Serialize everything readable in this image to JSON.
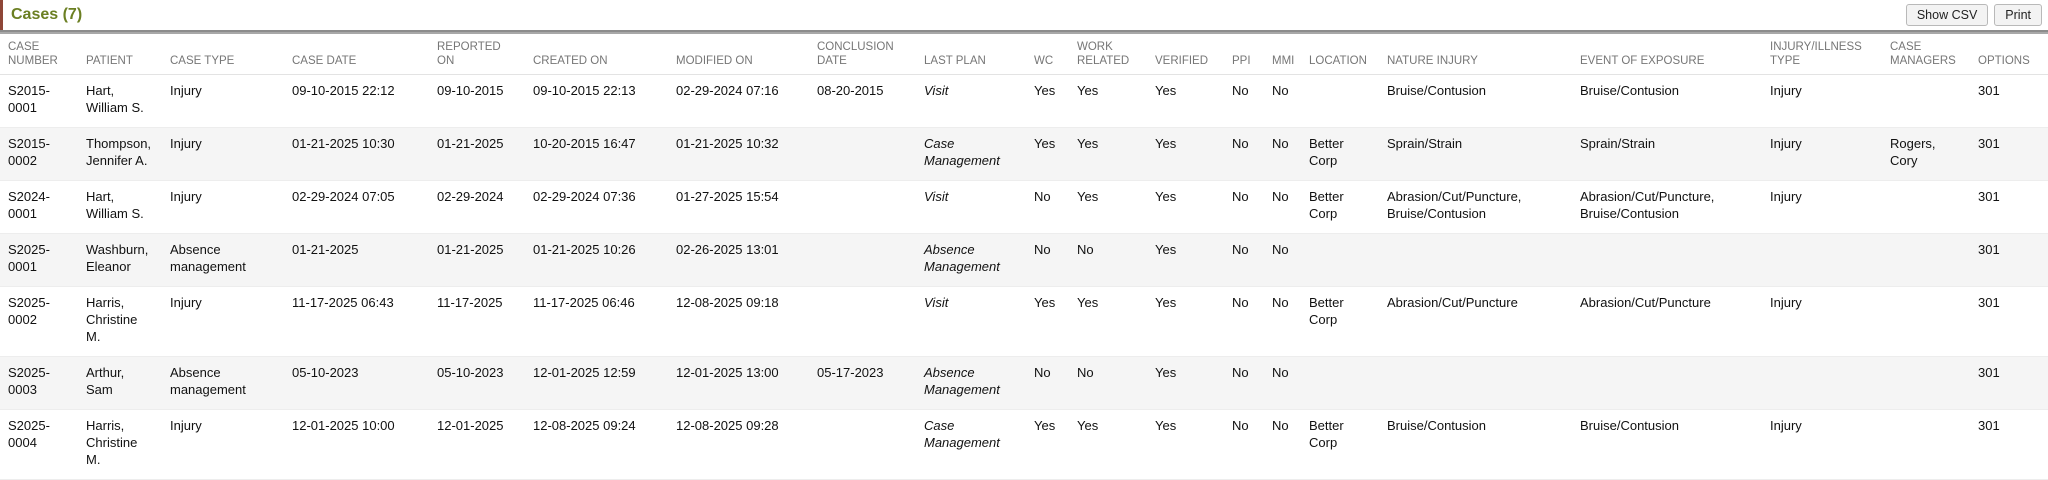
{
  "header": {
    "title": "Cases (7)",
    "show_csv_label": "Show CSV",
    "print_label": "Print"
  },
  "colors": {
    "title_green": "#6b7f22",
    "accent_left_border": "#8e4637",
    "header_text_gray": "#767676",
    "row_stripe": "#f5f5f5",
    "button_background": "#f3f3f3"
  },
  "table": {
    "columns": [
      {
        "key": "case_number",
        "label": "CASE NUMBER"
      },
      {
        "key": "patient",
        "label": "PATIENT"
      },
      {
        "key": "case_type",
        "label": "CASE TYPE"
      },
      {
        "key": "case_date",
        "label": "CASE DATE"
      },
      {
        "key": "reported_on",
        "label": "REPORTED ON"
      },
      {
        "key": "created_on",
        "label": "CREATED ON"
      },
      {
        "key": "modified_on",
        "label": "MODIFIED ON"
      },
      {
        "key": "conclusion_date",
        "label": "CONCLUSION DATE"
      },
      {
        "key": "last_plan",
        "label": "LAST PLAN"
      },
      {
        "key": "wc",
        "label": "WC"
      },
      {
        "key": "work_related",
        "label": "WORK RELATED"
      },
      {
        "key": "verified",
        "label": "VERIFIED"
      },
      {
        "key": "ppi",
        "label": "PPI"
      },
      {
        "key": "mmi",
        "label": "MMI"
      },
      {
        "key": "location",
        "label": "LOCATION"
      },
      {
        "key": "nature_injury",
        "label": "NATURE INJURY"
      },
      {
        "key": "event_of_exposure",
        "label": "EVENT OF EXPOSURE"
      },
      {
        "key": "injury_illness_type",
        "label": "INJURY/ILLNESS TYPE"
      },
      {
        "key": "case_managers",
        "label": "CASE MANAGERS"
      },
      {
        "key": "options",
        "label": "OPTIONS"
      }
    ],
    "rows": [
      {
        "case_number": "S2015-0001",
        "patient": "Hart, William S.",
        "case_type": "Injury",
        "case_date": "09-10-2015 22:12",
        "reported_on": "09-10-2015",
        "created_on": "09-10-2015 22:13",
        "modified_on": "02-29-2024 07:16",
        "conclusion_date": "08-20-2015",
        "last_plan": "Visit",
        "wc": "Yes",
        "work_related": "Yes",
        "verified": "Yes",
        "ppi": "No",
        "mmi": "No",
        "location": "",
        "nature_injury": "Bruise/Contusion",
        "event_of_exposure": "Bruise/Contusion",
        "injury_illness_type": "Injury",
        "case_managers": "",
        "options": "301"
      },
      {
        "case_number": "S2015-0002",
        "patient": "Thompson, Jennifer A.",
        "case_type": "Injury",
        "case_date": "01-21-2025 10:30",
        "reported_on": "01-21-2025",
        "created_on": "10-20-2015 16:47",
        "modified_on": "01-21-2025 10:32",
        "conclusion_date": "",
        "last_plan": "Case Management",
        "wc": "Yes",
        "work_related": "Yes",
        "verified": "Yes",
        "ppi": "No",
        "mmi": "No",
        "location": "Better Corp",
        "nature_injury": "Sprain/Strain",
        "event_of_exposure": "Sprain/Strain",
        "injury_illness_type": "Injury",
        "case_managers": "Rogers, Cory",
        "options": "301"
      },
      {
        "case_number": "S2024-0001",
        "patient": "Hart, William S.",
        "case_type": "Injury",
        "case_date": "02-29-2024 07:05",
        "reported_on": "02-29-2024",
        "created_on": "02-29-2024 07:36",
        "modified_on": "01-27-2025 15:54",
        "conclusion_date": "",
        "last_plan": "Visit",
        "wc": "No",
        "work_related": "Yes",
        "verified": "Yes",
        "ppi": "No",
        "mmi": "No",
        "location": "Better Corp",
        "nature_injury": "Abrasion/Cut/Puncture, Bruise/Contusion",
        "event_of_exposure": "Abrasion/Cut/Puncture, Bruise/Contusion",
        "injury_illness_type": "Injury",
        "case_managers": "",
        "options": "301"
      },
      {
        "case_number": "S2025-0001",
        "patient": "Washburn, Eleanor",
        "case_type": "Absence management",
        "case_date": "01-21-2025",
        "reported_on": "01-21-2025",
        "created_on": "01-21-2025 10:26",
        "modified_on": "02-26-2025 13:01",
        "conclusion_date": "",
        "last_plan": "Absence Management",
        "wc": "No",
        "work_related": "No",
        "verified": "Yes",
        "ppi": "No",
        "mmi": "No",
        "location": "",
        "nature_injury": "",
        "event_of_exposure": "",
        "injury_illness_type": "",
        "case_managers": "",
        "options": "301"
      },
      {
        "case_number": "S2025-0002",
        "patient": "Harris, Christine M.",
        "case_type": "Injury",
        "case_date": "11-17-2025 06:43",
        "reported_on": "11-17-2025",
        "created_on": "11-17-2025 06:46",
        "modified_on": "12-08-2025 09:18",
        "conclusion_date": "",
        "last_plan": "Visit",
        "wc": "Yes",
        "work_related": "Yes",
        "verified": "Yes",
        "ppi": "No",
        "mmi": "No",
        "location": "Better Corp",
        "nature_injury": "Abrasion/Cut/Puncture",
        "event_of_exposure": "Abrasion/Cut/Puncture",
        "injury_illness_type": "Injury",
        "case_managers": "",
        "options": "301"
      },
      {
        "case_number": "S2025-0003",
        "patient": "Arthur, Sam",
        "case_type": "Absence management",
        "case_date": "05-10-2023",
        "reported_on": "05-10-2023",
        "created_on": "12-01-2025 12:59",
        "modified_on": "12-01-2025 13:00",
        "conclusion_date": "05-17-2023",
        "last_plan": "Absence Management",
        "wc": "No",
        "work_related": "No",
        "verified": "Yes",
        "ppi": "No",
        "mmi": "No",
        "location": "",
        "nature_injury": "",
        "event_of_exposure": "",
        "injury_illness_type": "",
        "case_managers": "",
        "options": "301"
      },
      {
        "case_number": "S2025-0004",
        "patient": "Harris, Christine M.",
        "case_type": "Injury",
        "case_date": "12-01-2025 10:00",
        "reported_on": "12-01-2025",
        "created_on": "12-08-2025 09:24",
        "modified_on": "12-08-2025 09:28",
        "conclusion_date": "",
        "last_plan": "Case Management",
        "wc": "Yes",
        "work_related": "Yes",
        "verified": "Yes",
        "ppi": "No",
        "mmi": "No",
        "location": "Better Corp",
        "nature_injury": "Bruise/Contusion",
        "event_of_exposure": "Bruise/Contusion",
        "injury_illness_type": "Injury",
        "case_managers": "",
        "options": "301"
      }
    ]
  }
}
